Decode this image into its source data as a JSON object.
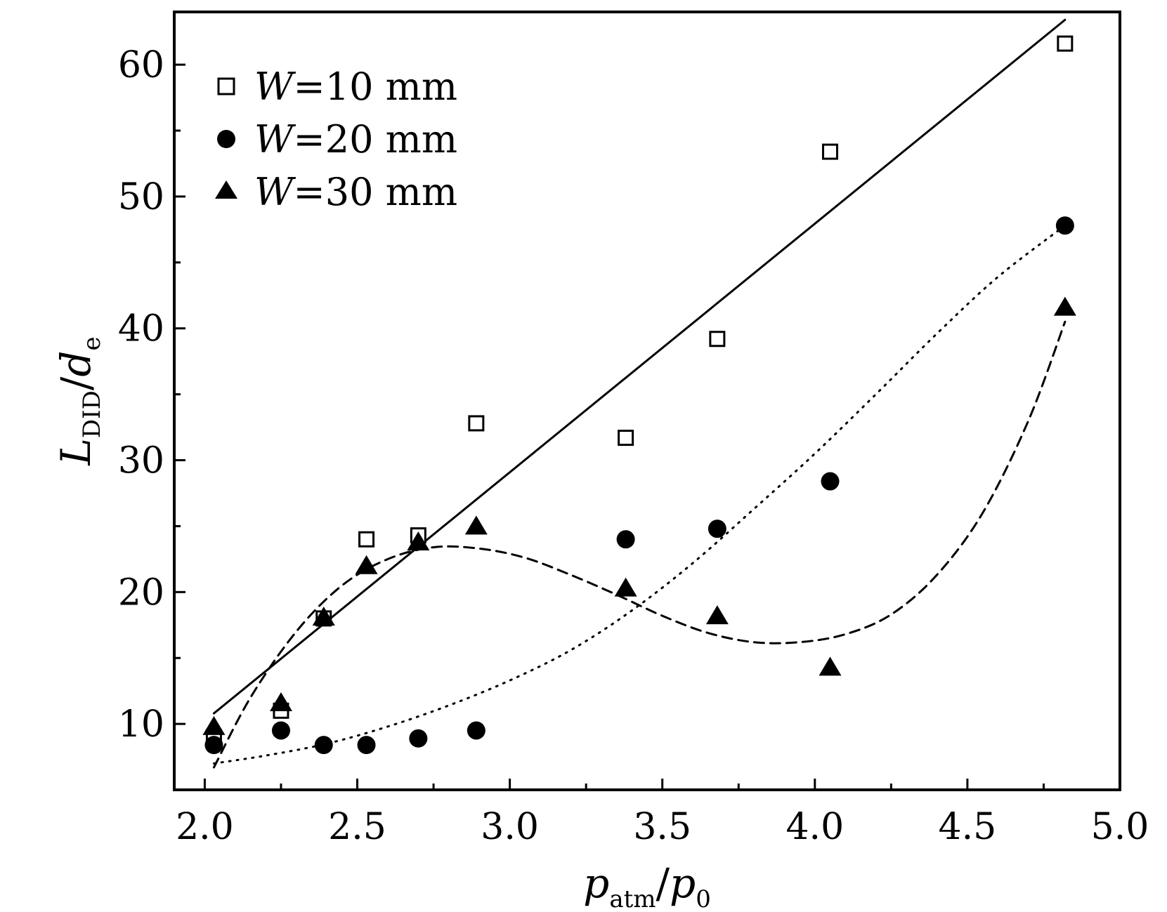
{
  "chart_data": {
    "type": "scatter",
    "xlabel": {
      "main": "p",
      "sub": "atm",
      "sep": "/",
      "main2": "p",
      "sub2": "0"
    },
    "ylabel": {
      "main": "L",
      "sub": "DID",
      "sep": "/",
      "main2": "d",
      "sub2": "e"
    },
    "xlim": [
      1.9,
      5.0
    ],
    "ylim": [
      5,
      64
    ],
    "xticks": [
      2.0,
      2.5,
      3.0,
      3.5,
      4.0,
      4.5,
      5.0
    ],
    "xtick_labels": [
      "2.0",
      "2.5",
      "3.0",
      "3.5",
      "4.0",
      "4.5",
      "5.0"
    ],
    "yticks": [
      10,
      20,
      30,
      40,
      50,
      60
    ],
    "ytick_labels": [
      "10",
      "20",
      "30",
      "40",
      "50",
      "60"
    ],
    "legend_position": "top-left",
    "grid": false,
    "series": [
      {
        "name": "W=10 mm",
        "legend_var": "W",
        "legend_rest": "=10 mm",
        "marker": "open-square",
        "fit_style": "solid",
        "x": [
          2.03,
          2.25,
          2.39,
          2.53,
          2.7,
          2.89,
          3.38,
          3.68,
          4.05,
          4.82
        ],
        "y": [
          9.0,
          11.0,
          18.0,
          24.0,
          24.3,
          32.8,
          31.7,
          39.2,
          53.4,
          61.6
        ],
        "fit_x": [
          2.03,
          4.82
        ],
        "fit_y": [
          10.8,
          63.4
        ]
      },
      {
        "name": "W=20 mm",
        "legend_var": "W",
        "legend_rest": "=20 mm",
        "marker": "filled-circle",
        "fit_style": "dotted",
        "x": [
          2.03,
          2.25,
          2.39,
          2.53,
          2.7,
          2.89,
          3.38,
          3.68,
          4.05,
          4.82
        ],
        "y": [
          8.4,
          9.5,
          8.4,
          8.4,
          8.9,
          9.5,
          24.0,
          24.8,
          28.4,
          47.8
        ],
        "fit_x": [
          2.03,
          2.2,
          2.4,
          2.6,
          2.8,
          3.0,
          3.2,
          3.4,
          3.6,
          3.8,
          4.0,
          4.2,
          4.4,
          4.6,
          4.82
        ],
        "fit_y": [
          7.0,
          7.6,
          8.5,
          9.8,
          11.4,
          13.3,
          15.6,
          18.6,
          22.2,
          26.3,
          30.5,
          35.0,
          39.6,
          43.9,
          47.8
        ]
      },
      {
        "name": "W=30 mm",
        "legend_var": "W",
        "legend_rest": "=30 mm",
        "marker": "filled-triangle",
        "fit_style": "dashed",
        "x": [
          2.03,
          2.25,
          2.39,
          2.53,
          2.7,
          2.89,
          3.38,
          3.68,
          4.05,
          4.82
        ],
        "y": [
          9.8,
          11.6,
          18.1,
          22.0,
          23.8,
          25.0,
          20.3,
          18.2,
          14.3,
          41.6
        ],
        "fit_x": [
          2.03,
          2.15,
          2.3,
          2.45,
          2.6,
          2.75,
          2.9,
          3.05,
          3.2,
          3.35,
          3.5,
          3.65,
          3.8,
          3.95,
          4.1,
          4.25,
          4.4,
          4.55,
          4.7,
          4.82
        ],
        "fit_y": [
          6.7,
          12.0,
          17.0,
          20.5,
          22.5,
          23.4,
          23.3,
          22.6,
          21.3,
          19.8,
          18.2,
          16.9,
          16.2,
          16.2,
          16.8,
          18.3,
          21.3,
          26.0,
          33.0,
          40.5
        ]
      }
    ]
  }
}
